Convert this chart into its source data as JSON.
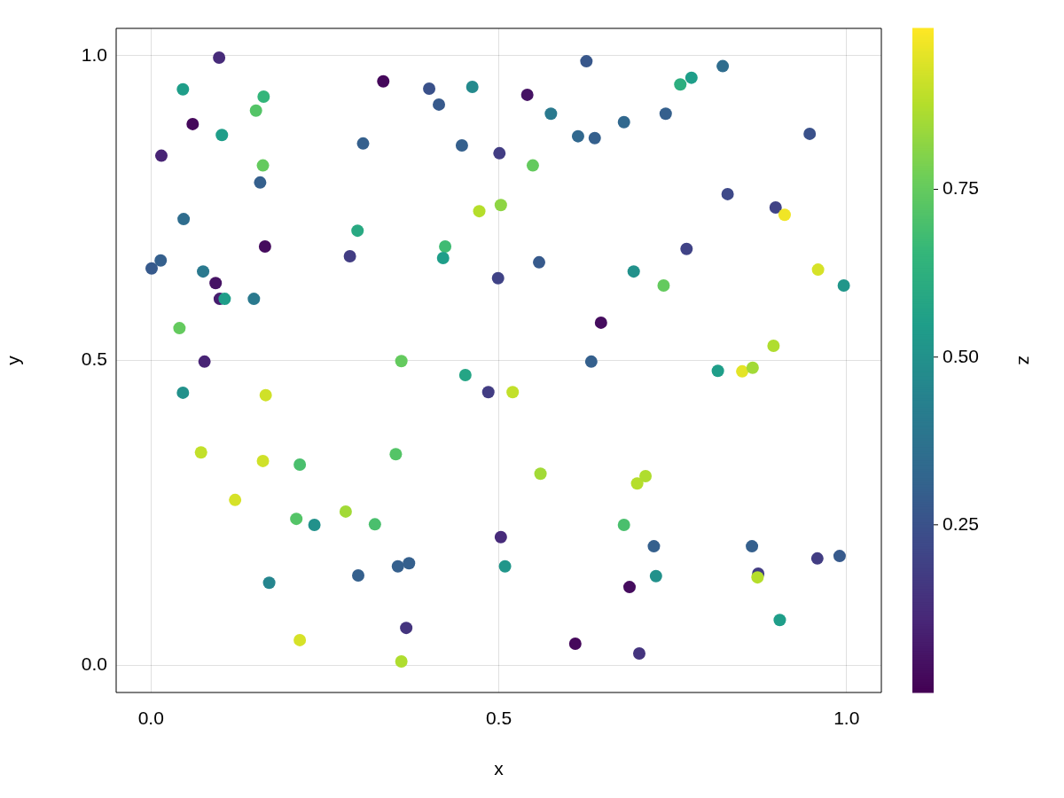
{
  "chart_data": {
    "type": "scatter",
    "xlabel": "x",
    "ylabel": "y",
    "clabel": "z",
    "marker": "circle",
    "grid": true,
    "legend": false,
    "xlim": [
      -0.05,
      1.05
    ],
    "ylim": [
      -0.045,
      1.045
    ],
    "xticks": [
      {
        "value": 0,
        "label": "0.0"
      },
      {
        "value": 0.5,
        "label": "0.5"
      },
      {
        "value": 1,
        "label": "1.0"
      }
    ],
    "yticks": [
      {
        "value": 0,
        "label": "0.0"
      },
      {
        "value": 0.5,
        "label": "0.5"
      },
      {
        "value": 1,
        "label": "1.0"
      }
    ],
    "clim": [
      0.0,
      0.99
    ],
    "cticks": [
      0.25,
      {
        "value": 0.5,
        "label": "0.50"
      },
      0.75
    ],
    "series": [
      {
        "x": [
          0.098,
          0.046,
          0.06,
          0.102,
          0.015,
          0.151,
          0.162,
          0.161,
          0.157,
          0.047,
          0.001,
          0.014,
          0.075,
          0.093,
          0.099,
          0.106,
          0.148,
          0.164,
          0.041,
          0.077,
          0.046,
          0.165,
          0.072,
          0.161,
          0.121,
          0.214,
          0.209,
          0.235,
          0.17,
          0.214,
          0.28,
          0.322,
          0.298,
          0.355,
          0.371,
          0.36,
          0.367,
          0.352,
          0.36,
          0.297,
          0.305,
          0.286,
          0.334,
          0.4,
          0.414,
          0.462,
          0.447,
          0.423,
          0.42,
          0.472,
          0.452,
          0.485,
          0.501,
          0.499,
          0.541,
          0.575,
          0.549,
          0.503,
          0.558,
          0.52,
          0.56,
          0.503,
          0.509,
          0.61,
          0.626,
          0.614,
          0.638,
          0.68,
          0.74,
          0.761,
          0.777,
          0.822,
          0.694,
          0.737,
          0.77,
          0.647,
          0.633,
          0.699,
          0.711,
          0.68,
          0.723,
          0.726,
          0.688,
          0.702,
          0.829,
          0.898,
          0.911,
          0.947,
          0.996,
          0.959,
          0.895,
          0.815,
          0.85,
          0.865,
          0.864,
          0.873,
          0.872,
          0.958,
          0.99,
          0.904
        ],
        "values": [
          0.997,
          0.945,
          0.888,
          0.87,
          0.836,
          0.91,
          0.933,
          0.82,
          0.792,
          0.732,
          0.651,
          0.664,
          0.646,
          0.627,
          0.601,
          0.601,
          0.601,
          0.687,
          0.553,
          0.498,
          0.447,
          0.443,
          0.349,
          0.335,
          0.271,
          0.329,
          0.24,
          0.23,
          0.135,
          0.041,
          0.252,
          0.231,
          0.147,
          0.162,
          0.167,
          0.006,
          0.061,
          0.346,
          0.499,
          0.713,
          0.856,
          0.671,
          0.958,
          0.946,
          0.92,
          0.949,
          0.853,
          0.687,
          0.668,
          0.745,
          0.476,
          0.448,
          0.84,
          0.635,
          0.936,
          0.905,
          0.82,
          0.755,
          0.661,
          0.448,
          0.314,
          0.21,
          0.162,
          0.035,
          0.991,
          0.868,
          0.865,
          0.891,
          0.905,
          0.953,
          0.964,
          0.983,
          0.646,
          0.623,
          0.683,
          0.562,
          0.498,
          0.298,
          0.31,
          0.23,
          0.195,
          0.146,
          0.128,
          0.019,
          0.773,
          0.751,
          0.739,
          0.872,
          0.623,
          0.649,
          0.524,
          0.483,
          0.482,
          0.488,
          0.195,
          0.15,
          0.144,
          0.175,
          0.179,
          0.074
        ],
        "cvalues": [
          0.12,
          0.55,
          0.02,
          0.55,
          0.1,
          0.72,
          0.65,
          0.75,
          0.3,
          0.35,
          0.28,
          0.3,
          0.4,
          0.05,
          0.08,
          0.55,
          0.4,
          0.03,
          0.75,
          0.1,
          0.5,
          0.92,
          0.9,
          0.92,
          0.93,
          0.7,
          0.72,
          0.5,
          0.45,
          0.93,
          0.85,
          0.7,
          0.3,
          0.3,
          0.3,
          0.87,
          0.15,
          0.72,
          0.75,
          0.6,
          0.3,
          0.18,
          0.02,
          0.25,
          0.28,
          0.47,
          0.3,
          0.68,
          0.55,
          0.88,
          0.58,
          0.18,
          0.18,
          0.2,
          0.05,
          0.4,
          0.75,
          0.82,
          0.28,
          0.9,
          0.85,
          0.12,
          0.52,
          0.02,
          0.27,
          0.33,
          0.3,
          0.33,
          0.3,
          0.62,
          0.55,
          0.35,
          0.5,
          0.75,
          0.2,
          0.03,
          0.3,
          0.88,
          0.87,
          0.7,
          0.3,
          0.5,
          0.03,
          0.15,
          0.22,
          0.2,
          0.97,
          0.25,
          0.52,
          0.93,
          0.87,
          0.55,
          0.95,
          0.85,
          0.3,
          0.18,
          0.88,
          0.18,
          0.28,
          0.55
        ]
      }
    ]
  }
}
